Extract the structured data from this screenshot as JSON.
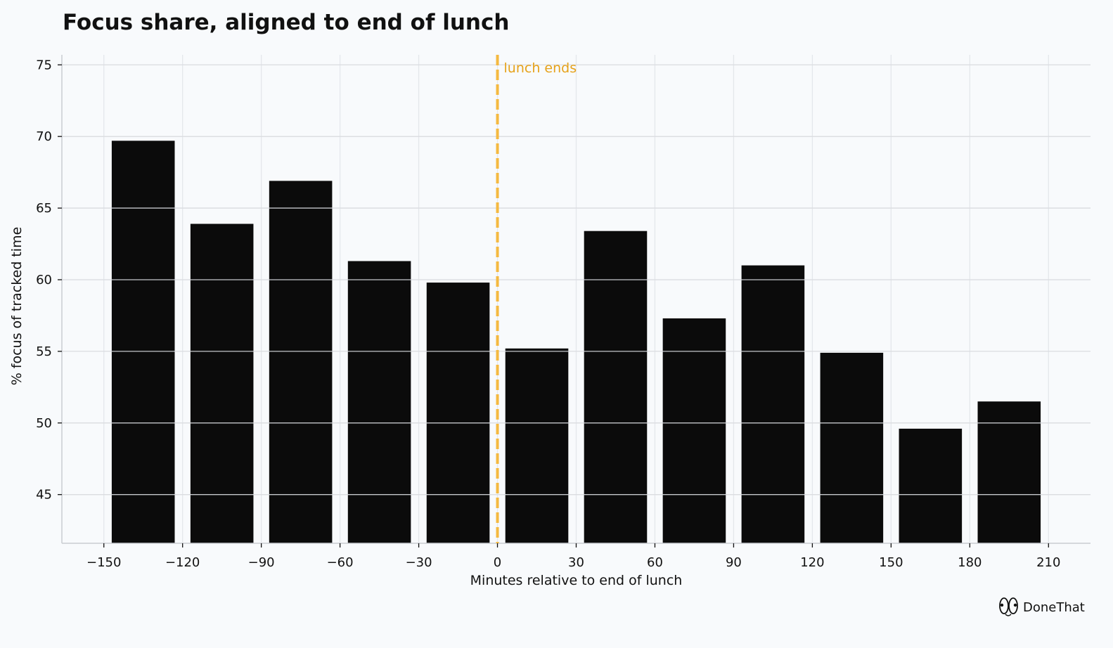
{
  "chart_data": {
    "type": "bar",
    "title": "Focus share, aligned to end of lunch",
    "xlabel": "Minutes relative to end of lunch",
    "ylabel": "% focus of tracked time",
    "x_bin_starts": [
      -150,
      -120,
      -90,
      -60,
      -30,
      0,
      30,
      60,
      90,
      120,
      150,
      180
    ],
    "bin_width": 30,
    "values": [
      69.7,
      63.9,
      66.9,
      61.3,
      59.8,
      55.2,
      63.4,
      57.3,
      61.0,
      54.9,
      49.6,
      51.5
    ],
    "xlim": [
      -166,
      226
    ],
    "ylim": [
      41.6,
      75.7
    ],
    "xticks": [
      "−150",
      "−120",
      "−90",
      "−60",
      "−30",
      "0",
      "30",
      "60",
      "90",
      "120",
      "150",
      "180",
      "210"
    ],
    "xtick_values": [
      -150,
      -120,
      -90,
      -60,
      -30,
      0,
      30,
      60,
      90,
      120,
      150,
      180,
      210
    ],
    "yticks": [
      "45",
      "50",
      "55",
      "60",
      "65",
      "70",
      "75"
    ],
    "ytick_values": [
      45,
      50,
      55,
      60,
      65,
      70,
      75
    ],
    "grid": true,
    "annotation": {
      "x": 0,
      "label": "lunch ends"
    }
  },
  "colors": {
    "background": "#f8fafc",
    "bar": "#0b0b0b",
    "grid": "#e4e7eb",
    "grid_over_bar": "#d9dce0",
    "axis": "#c9ccd1",
    "annotation": "#f5b940",
    "annotation_text": "#e6a21a",
    "text": "#111111"
  },
  "brand": {
    "name": "DoneThat",
    "icon": "eyes-logo-icon"
  }
}
